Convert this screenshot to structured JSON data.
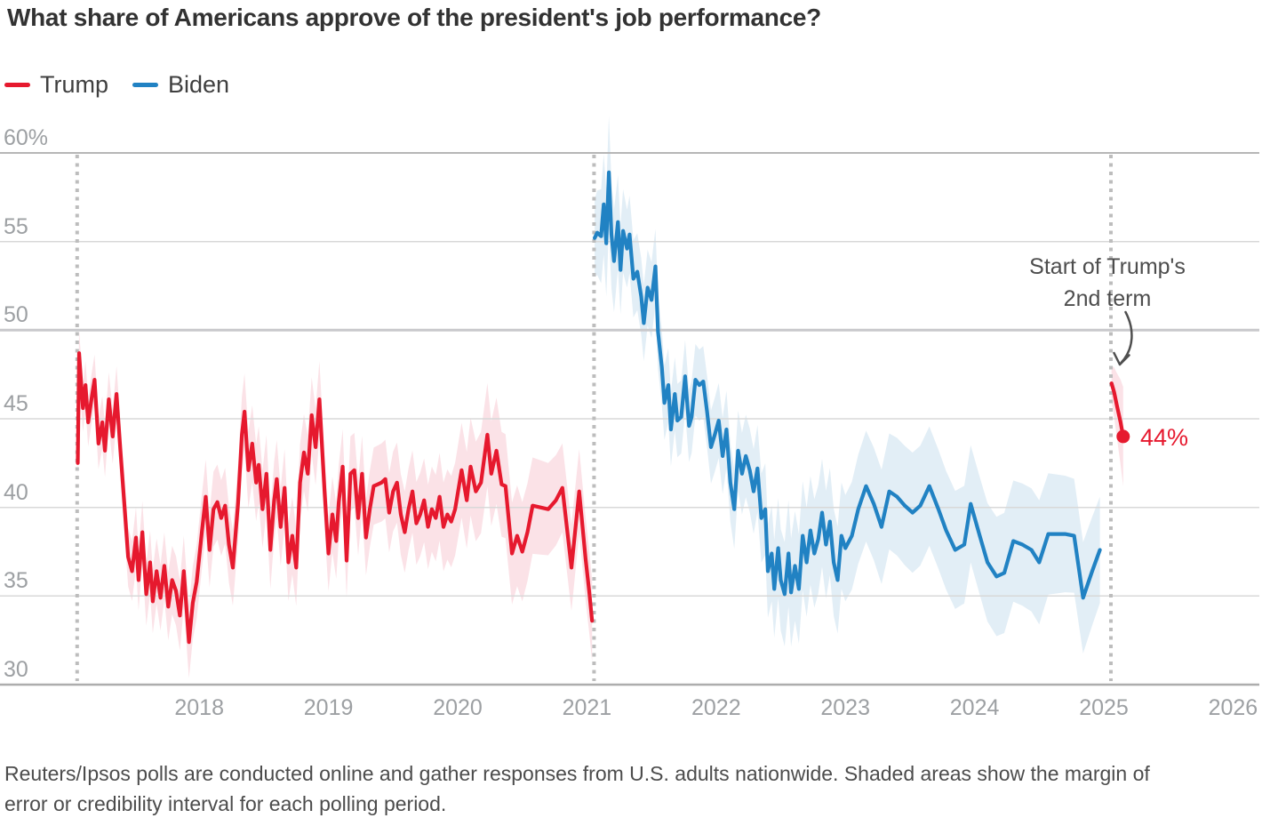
{
  "chart_data": {
    "type": "line",
    "title": "What share of Americans approve of the president's job performance?",
    "ylim": [
      30,
      60
    ],
    "xlim": [
      2016.46,
      2026.22
    ],
    "grid": "horizontal",
    "legend_position": "top-left",
    "yticks": [
      {
        "value": 60,
        "label": "60%"
      },
      {
        "value": 55,
        "label": "55"
      },
      {
        "value": 50,
        "label": "50"
      },
      {
        "value": 45,
        "label": "45"
      },
      {
        "value": 40,
        "label": "40"
      },
      {
        "value": 35,
        "label": "35"
      },
      {
        "value": 30,
        "label": "30"
      }
    ],
    "xticks": [
      {
        "value": 2018,
        "label": "2018"
      },
      {
        "value": 2019,
        "label": "2019"
      },
      {
        "value": 2020,
        "label": "2020"
      },
      {
        "value": 2021,
        "label": "2021"
      },
      {
        "value": 2022,
        "label": "2022"
      },
      {
        "value": 2023,
        "label": "2023"
      },
      {
        "value": 2024,
        "label": "2024"
      },
      {
        "value": 2025,
        "label": "2025"
      },
      {
        "value": 2026,
        "label": "2026"
      }
    ],
    "legend": [
      {
        "label": "Trump",
        "color": "#e6192e"
      },
      {
        "label": "Biden",
        "color": "#2182c3"
      }
    ],
    "term_start_lines": [
      2017.055,
      2021.055,
      2025.055
    ],
    "annotation": {
      "line1": "Start of Trump's",
      "line2": "2nd term"
    },
    "series": [
      {
        "name": "Trump (1st term)",
        "color": "#e6192e",
        "band_color": "#fbe2e7",
        "points": [
          [
            2017.06,
            42.5
          ],
          [
            2017.07,
            48.7
          ],
          [
            2017.1,
            45.6
          ],
          [
            2017.12,
            46.9
          ],
          [
            2017.14,
            44.8
          ],
          [
            2017.17,
            46.3
          ],
          [
            2017.19,
            47.2
          ],
          [
            2017.22,
            43.6
          ],
          [
            2017.25,
            44.8
          ],
          [
            2017.27,
            43.2
          ],
          [
            2017.3,
            46.1
          ],
          [
            2017.33,
            44.0
          ],
          [
            2017.36,
            46.4
          ],
          [
            2017.39,
            43.2
          ],
          [
            2017.42,
            40.2
          ],
          [
            2017.45,
            37.2
          ],
          [
            2017.48,
            36.4
          ],
          [
            2017.51,
            38.3
          ],
          [
            2017.53,
            35.9
          ],
          [
            2017.56,
            38.6
          ],
          [
            2017.59,
            35.1
          ],
          [
            2017.62,
            36.9
          ],
          [
            2017.64,
            34.7
          ],
          [
            2017.67,
            36.4
          ],
          [
            2017.7,
            34.9
          ],
          [
            2017.73,
            36.7
          ],
          [
            2017.76,
            34.4
          ],
          [
            2017.79,
            35.9
          ],
          [
            2017.82,
            35.3
          ],
          [
            2017.85,
            33.9
          ],
          [
            2017.88,
            36.4
          ],
          [
            2017.92,
            32.4
          ],
          [
            2017.95,
            34.6
          ],
          [
            2017.98,
            35.8
          ],
          [
            2018.02,
            38.6
          ],
          [
            2018.05,
            40.6
          ],
          [
            2018.08,
            37.6
          ],
          [
            2018.11,
            39.9
          ],
          [
            2018.14,
            40.3
          ],
          [
            2018.17,
            39.4
          ],
          [
            2018.2,
            40.1
          ],
          [
            2018.23,
            37.9
          ],
          [
            2018.26,
            36.6
          ],
          [
            2018.3,
            40.2
          ],
          [
            2018.33,
            44.1
          ],
          [
            2018.35,
            45.4
          ],
          [
            2018.38,
            42.1
          ],
          [
            2018.41,
            43.6
          ],
          [
            2018.44,
            41.4
          ],
          [
            2018.46,
            42.4
          ],
          [
            2018.49,
            39.9
          ],
          [
            2018.52,
            41.9
          ],
          [
            2018.55,
            37.6
          ],
          [
            2018.58,
            40.4
          ],
          [
            2018.6,
            41.6
          ],
          [
            2018.63,
            38.9
          ],
          [
            2018.66,
            41.1
          ],
          [
            2018.69,
            36.9
          ],
          [
            2018.72,
            38.4
          ],
          [
            2018.75,
            36.6
          ],
          [
            2018.78,
            41.4
          ],
          [
            2018.81,
            43.1
          ],
          [
            2018.84,
            41.9
          ],
          [
            2018.87,
            45.2
          ],
          [
            2018.9,
            43.4
          ],
          [
            2018.93,
            46.1
          ],
          [
            2018.97,
            40.9
          ],
          [
            2019.0,
            37.4
          ],
          [
            2019.03,
            39.6
          ],
          [
            2019.06,
            38.1
          ],
          [
            2019.08,
            40.3
          ],
          [
            2019.11,
            42.3
          ],
          [
            2019.14,
            37.0
          ],
          [
            2019.17,
            41.9
          ],
          [
            2019.2,
            42.1
          ],
          [
            2019.23,
            39.4
          ],
          [
            2019.26,
            41.9
          ],
          [
            2019.29,
            38.3
          ],
          [
            2019.32,
            39.9
          ],
          [
            2019.35,
            41.2
          ],
          [
            2019.38,
            41.3
          ],
          [
            2019.41,
            41.4
          ],
          [
            2019.44,
            41.6
          ],
          [
            2019.47,
            39.7
          ],
          [
            2019.5,
            40.9
          ],
          [
            2019.53,
            41.4
          ],
          [
            2019.56,
            39.6
          ],
          [
            2019.59,
            38.6
          ],
          [
            2019.62,
            39.9
          ],
          [
            2019.65,
            40.9
          ],
          [
            2019.68,
            39.1
          ],
          [
            2019.71,
            39.6
          ],
          [
            2019.74,
            40.4
          ],
          [
            2019.77,
            38.9
          ],
          [
            2019.8,
            39.9
          ],
          [
            2019.83,
            39.4
          ],
          [
            2019.86,
            40.6
          ],
          [
            2019.89,
            38.9
          ],
          [
            2019.92,
            39.6
          ],
          [
            2019.95,
            39.2
          ],
          [
            2019.98,
            39.9
          ],
          [
            2020.03,
            42.1
          ],
          [
            2020.07,
            40.4
          ],
          [
            2020.1,
            42.3
          ],
          [
            2020.14,
            40.9
          ],
          [
            2020.18,
            41.4
          ],
          [
            2020.23,
            44.1
          ],
          [
            2020.26,
            41.9
          ],
          [
            2020.3,
            43.2
          ],
          [
            2020.34,
            41.3
          ],
          [
            2020.37,
            41.2
          ],
          [
            2020.42,
            37.4
          ],
          [
            2020.46,
            38.4
          ],
          [
            2020.5,
            37.5
          ],
          [
            2020.54,
            38.6
          ],
          [
            2020.58,
            40.1
          ],
          [
            2020.64,
            40.0
          ],
          [
            2020.7,
            39.9
          ],
          [
            2020.76,
            40.4
          ],
          [
            2020.81,
            41.1
          ],
          [
            2020.88,
            36.6
          ],
          [
            2020.94,
            40.9
          ],
          [
            2020.99,
            37.1
          ],
          [
            2021.02,
            35.1
          ],
          [
            2021.04,
            33.6
          ]
        ],
        "moe_points": [
          [
            2017.06,
            1.3
          ],
          [
            2017.5,
            1.7
          ],
          [
            2018.0,
            2.1
          ],
          [
            2018.6,
            2.2
          ],
          [
            2019.2,
            2.1
          ],
          [
            2019.8,
            2.4
          ],
          [
            2020.3,
            3.0
          ],
          [
            2020.7,
            2.6
          ],
          [
            2021.04,
            2.3
          ]
        ]
      },
      {
        "name": "Biden",
        "color": "#2182c3",
        "band_color": "#e2eef6",
        "points": [
          [
            2021.06,
            55.2
          ],
          [
            2021.08,
            55.5
          ],
          [
            2021.11,
            55.3
          ],
          [
            2021.13,
            57.1
          ],
          [
            2021.15,
            54.9
          ],
          [
            2021.17,
            58.9
          ],
          [
            2021.19,
            55.4
          ],
          [
            2021.21,
            53.9
          ],
          [
            2021.24,
            56.1
          ],
          [
            2021.26,
            53.4
          ],
          [
            2021.28,
            55.6
          ],
          [
            2021.31,
            54.6
          ],
          [
            2021.33,
            55.4
          ],
          [
            2021.36,
            52.9
          ],
          [
            2021.39,
            53.3
          ],
          [
            2021.42,
            51.9
          ],
          [
            2021.44,
            50.4
          ],
          [
            2021.47,
            52.4
          ],
          [
            2021.5,
            51.7
          ],
          [
            2021.53,
            53.6
          ],
          [
            2021.55,
            49.9
          ],
          [
            2021.58,
            47.9
          ],
          [
            2021.6,
            45.9
          ],
          [
            2021.63,
            46.9
          ],
          [
            2021.65,
            44.4
          ],
          [
            2021.68,
            46.4
          ],
          [
            2021.7,
            44.9
          ],
          [
            2021.73,
            45.1
          ],
          [
            2021.76,
            47.4
          ],
          [
            2021.79,
            44.6
          ],
          [
            2021.81,
            45.1
          ],
          [
            2021.84,
            47.2
          ],
          [
            2021.87,
            46.9
          ],
          [
            2021.9,
            47.1
          ],
          [
            2021.93,
            45.4
          ],
          [
            2021.96,
            43.4
          ],
          [
            2021.99,
            44.1
          ],
          [
            2022.02,
            44.9
          ],
          [
            2022.05,
            42.9
          ],
          [
            2022.08,
            44.4
          ],
          [
            2022.11,
            41.4
          ],
          [
            2022.14,
            39.9
          ],
          [
            2022.17,
            43.2
          ],
          [
            2022.2,
            41.9
          ],
          [
            2022.23,
            42.9
          ],
          [
            2022.26,
            42.1
          ],
          [
            2022.29,
            40.9
          ],
          [
            2022.32,
            42.2
          ],
          [
            2022.35,
            39.4
          ],
          [
            2022.38,
            39.9
          ],
          [
            2022.4,
            36.4
          ],
          [
            2022.43,
            37.4
          ],
          [
            2022.45,
            35.4
          ],
          [
            2022.48,
            37.7
          ],
          [
            2022.5,
            35.9
          ],
          [
            2022.53,
            35.1
          ],
          [
            2022.56,
            37.4
          ],
          [
            2022.58,
            35.2
          ],
          [
            2022.61,
            36.7
          ],
          [
            2022.64,
            35.4
          ],
          [
            2022.67,
            38.4
          ],
          [
            2022.7,
            36.9
          ],
          [
            2022.73,
            38.7
          ],
          [
            2022.76,
            37.4
          ],
          [
            2022.79,
            38.2
          ],
          [
            2022.82,
            39.7
          ],
          [
            2022.85,
            37.9
          ],
          [
            2022.88,
            39.2
          ],
          [
            2022.91,
            36.9
          ],
          [
            2022.94,
            35.9
          ],
          [
            2022.97,
            38.4
          ],
          [
            2023.0,
            37.7
          ],
          [
            2023.05,
            38.4
          ],
          [
            2023.1,
            39.9
          ],
          [
            2023.16,
            41.2
          ],
          [
            2023.22,
            40.2
          ],
          [
            2023.28,
            38.9
          ],
          [
            2023.34,
            40.9
          ],
          [
            2023.4,
            40.6
          ],
          [
            2023.46,
            40.1
          ],
          [
            2023.52,
            39.7
          ],
          [
            2023.58,
            40.1
          ],
          [
            2023.65,
            41.2
          ],
          [
            2023.72,
            39.9
          ],
          [
            2023.78,
            38.7
          ],
          [
            2023.85,
            37.6
          ],
          [
            2023.92,
            37.9
          ],
          [
            2023.97,
            40.2
          ],
          [
            2024.04,
            38.4
          ],
          [
            2024.1,
            36.9
          ],
          [
            2024.17,
            36.1
          ],
          [
            2024.23,
            36.3
          ],
          [
            2024.3,
            38.1
          ],
          [
            2024.37,
            37.9
          ],
          [
            2024.44,
            37.6
          ],
          [
            2024.5,
            36.9
          ],
          [
            2024.57,
            38.5
          ],
          [
            2024.64,
            38.5
          ],
          [
            2024.7,
            38.5
          ],
          [
            2024.77,
            38.4
          ],
          [
            2024.84,
            34.9
          ],
          [
            2024.91,
            36.4
          ],
          [
            2024.97,
            37.6
          ]
        ],
        "moe_points": [
          [
            2021.06,
            2.2
          ],
          [
            2021.17,
            3.2
          ],
          [
            2021.3,
            2.2
          ],
          [
            2021.6,
            2.1
          ],
          [
            2021.9,
            2.0
          ],
          [
            2022.3,
            2.4
          ],
          [
            2022.6,
            3.1
          ],
          [
            2023.0,
            3.0
          ],
          [
            2023.5,
            3.4
          ],
          [
            2024.0,
            3.3
          ],
          [
            2024.5,
            3.5
          ],
          [
            2024.97,
            3.0
          ]
        ]
      },
      {
        "name": "Trump (2nd term)",
        "color": "#e6192e",
        "band_color": "#fbe2e7",
        "points": [
          [
            2025.06,
            47.0
          ],
          [
            2025.08,
            46.5
          ],
          [
            2025.1,
            45.8
          ],
          [
            2025.13,
            44.8
          ],
          [
            2025.15,
            44.0
          ]
        ],
        "moe_points": [
          [
            2025.06,
            1.0
          ],
          [
            2025.1,
            1.8
          ],
          [
            2025.15,
            2.8
          ]
        ],
        "end_dot": true,
        "end_label": "44%"
      }
    ]
  },
  "source_note": {
    "line1": "Reuters/Ipsos polls are conducted online and gather responses from U.S. adults nationwide. Shaded areas show the margin of",
    "line2": "error or credibility interval for each polling period."
  }
}
